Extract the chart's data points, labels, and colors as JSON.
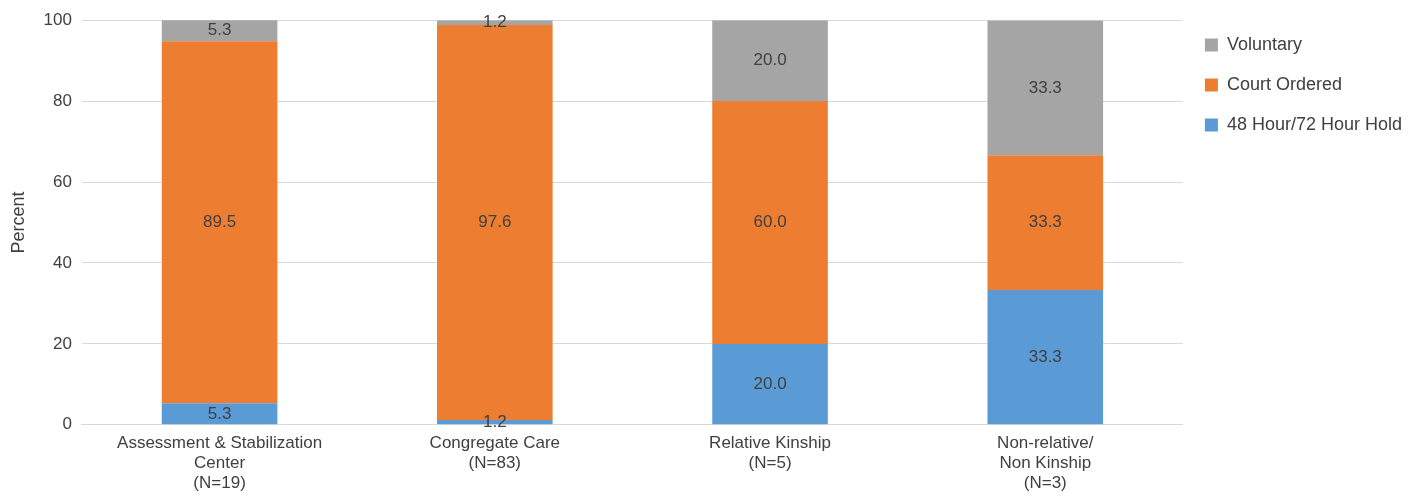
{
  "chart_data": {
    "type": "bar",
    "stacked": true,
    "categories": [
      "Assessment & Stabilization\nCenter\n(N=19)",
      "Congregate Care\n(N=83)",
      "Relative Kinship\n(N=5)",
      "Non-relative/\nNon Kinship\n(N=3)"
    ],
    "series": [
      {
        "name": "48 Hour/72 Hour Hold",
        "color": "#5b9bd5",
        "values": [
          5.3,
          1.2,
          20.0,
          33.3
        ],
        "value_labels": [
          "5.3",
          "1.2",
          "20.0",
          "33.3"
        ]
      },
      {
        "name": "Court Ordered",
        "color": "#ed7d31",
        "values": [
          89.5,
          97.6,
          60.0,
          33.3
        ],
        "value_labels": [
          "89.5",
          "97.6",
          "60.0",
          "33.3"
        ]
      },
      {
        "name": "Voluntary",
        "color": "#a5a5a5",
        "values": [
          5.3,
          1.2,
          20.0,
          33.3
        ],
        "value_labels": [
          "5.3",
          "1.2",
          "20.0",
          "33.3"
        ]
      }
    ],
    "ylabel": "Percent",
    "ylim": [
      0,
      100
    ],
    "yticks": [
      0,
      20,
      40,
      60,
      80,
      100
    ],
    "grid": "y",
    "legend": "top right"
  }
}
